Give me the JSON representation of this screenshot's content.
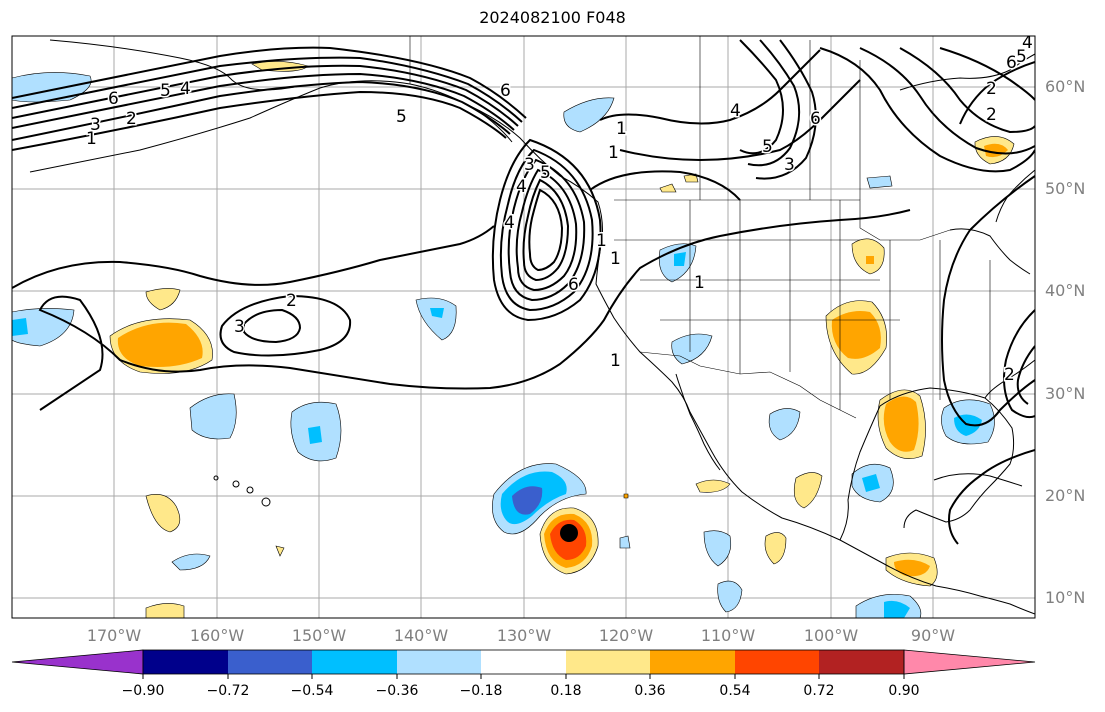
{
  "title": "2024082100 F048",
  "map": {
    "lat_labels": [
      "60°N",
      "50°N",
      "40°N",
      "30°N",
      "20°N",
      "10°N"
    ],
    "lon_labels": [
      "170°W",
      "160°W",
      "150°W",
      "140°W",
      "130°W",
      "120°W",
      "110°W",
      "100°W",
      "90°W"
    ],
    "contour_labels": [
      "6",
      "5",
      "4",
      "3",
      "2",
      "1",
      "2",
      "3",
      "1",
      "6",
      "5",
      "4",
      "1",
      "6",
      "5",
      "4",
      "3",
      "2",
      "1",
      "1",
      "6",
      "4",
      "3",
      "5",
      "2",
      "1",
      "6",
      "5",
      "4",
      "1",
      "2"
    ]
  },
  "colorbar": {
    "tick_labels": [
      "−0.90",
      "−0.72",
      "−0.54",
      "−0.36",
      "−0.18",
      "0.18",
      "0.36",
      "0.54",
      "0.72",
      "0.90"
    ],
    "colors": [
      "#9932cc",
      "#00008b",
      "#3a5fcd",
      "#00bfff",
      "#b0e0ff",
      "#ffffff",
      "#ffe88a",
      "#ffa500",
      "#ff4500",
      "#b22222",
      "#ff88aa"
    ]
  }
}
